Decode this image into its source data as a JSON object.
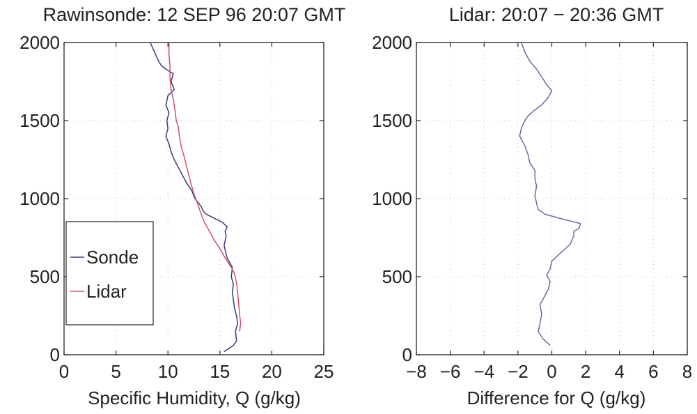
{
  "chart_data": [
    {
      "type": "line",
      "title": "Rawinsonde: 12 SEP 96 20:07 GMT",
      "xlabel": "Specific Humidity, Q (g/kg)",
      "ylabel": "",
      "xlim": [
        0,
        25
      ],
      "ylim": [
        0,
        2000
      ],
      "xticks": [
        "0",
        "5",
        "10",
        "15",
        "20",
        "25"
      ],
      "yticks": [
        "0",
        "500",
        "1000",
        "1500",
        "2000"
      ],
      "grid": true,
      "legend": {
        "placement": "lower-left",
        "entries": [
          "Sonde",
          "Lidar"
        ]
      },
      "series": [
        {
          "name": "Sonde",
          "color": "#3a3a7a",
          "x": [
            15.4,
            16.3,
            16.6,
            16.5,
            16.7,
            16.6,
            16.4,
            16.3,
            16.2,
            16.3,
            16.1,
            16.2,
            15.7,
            15.4,
            15.6,
            15.5,
            15.7,
            15.2,
            14.3,
            13.7,
            13.4,
            13.2,
            12.6,
            12.3,
            11.8,
            11.4,
            11.0,
            10.6,
            10.3,
            10.1,
            9.8,
            10.0,
            9.9,
            10.1,
            9.8,
            9.9,
            10.0,
            10.6,
            10.3,
            10.5,
            9.8,
            9.4,
            9.1,
            8.9,
            8.7,
            8.5,
            8.3
          ],
          "y": [
            20,
            60,
            90,
            150,
            200,
            250,
            300,
            350,
            400,
            450,
            500,
            560,
            620,
            700,
            760,
            790,
            820,
            850,
            880,
            900,
            920,
            950,
            1000,
            1050,
            1100,
            1150,
            1200,
            1250,
            1300,
            1350,
            1400,
            1450,
            1500,
            1550,
            1600,
            1630,
            1660,
            1700,
            1750,
            1800,
            1830,
            1850,
            1880,
            1910,
            1940,
            1970,
            2000
          ]
        },
        {
          "name": "Lidar",
          "color": "#d0506a",
          "x": [
            16.9,
            17.0,
            16.9,
            16.8,
            16.7,
            16.6,
            16.4,
            16.1,
            15.5,
            15.0,
            14.4,
            14.0,
            13.5,
            13.2,
            12.9,
            12.5,
            12.2,
            11.9,
            11.6,
            11.3,
            11.1,
            11.0,
            10.8,
            10.7,
            10.5,
            10.3,
            10.2,
            10.2,
            10.1,
            10.1
          ],
          "y": [
            150,
            200,
            260,
            330,
            400,
            460,
            520,
            560,
            620,
            680,
            740,
            790,
            850,
            900,
            960,
            1030,
            1100,
            1180,
            1260,
            1330,
            1400,
            1460,
            1500,
            1560,
            1640,
            1700,
            1770,
            1850,
            1920,
            2000
          ]
        }
      ]
    },
    {
      "type": "line",
      "title": "Lidar:  20:07 − 20:36 GMT",
      "xlabel": "Difference for Q (g/kg)",
      "ylabel": "",
      "xlim": [
        -8,
        8
      ],
      "ylim": [
        0,
        2000
      ],
      "xticks": [
        "−8",
        "−6",
        "−4",
        "−2",
        "0",
        "2",
        "4",
        "6",
        "8"
      ],
      "yticks": [
        "0",
        "500",
        "1000",
        "1500",
        "2000"
      ],
      "grid": true,
      "series": [
        {
          "color": "#6a6aa8",
          "x": [
            -0.1,
            -0.5,
            -0.8,
            -0.7,
            -0.6,
            -0.7,
            -0.4,
            -0.2,
            -0.1,
            -0.3,
            -0.1,
            0.0,
            0.4,
            0.8,
            1.1,
            1.2,
            1.3,
            1.3,
            1.6,
            1.7,
            0.6,
            -0.4,
            -0.8,
            -0.9,
            -1.0,
            -0.9,
            -1.0,
            -1.0,
            -1.3,
            -1.4,
            -1.6,
            -1.9,
            -1.8,
            -1.6,
            -1.4,
            -1.1,
            -0.6,
            -0.2,
            0.0,
            -0.3,
            -0.6,
            -0.9,
            -1.3,
            -1.6,
            -1.8
          ],
          "y": [
            60,
            100,
            150,
            200,
            260,
            320,
            380,
            420,
            470,
            510,
            550,
            600,
            640,
            680,
            710,
            740,
            760,
            790,
            810,
            840,
            870,
            900,
            930,
            970,
            1020,
            1080,
            1130,
            1180,
            1230,
            1280,
            1340,
            1400,
            1450,
            1500,
            1530,
            1560,
            1600,
            1650,
            1690,
            1730,
            1780,
            1830,
            1880,
            1940,
            2000
          ]
        }
      ]
    }
  ]
}
